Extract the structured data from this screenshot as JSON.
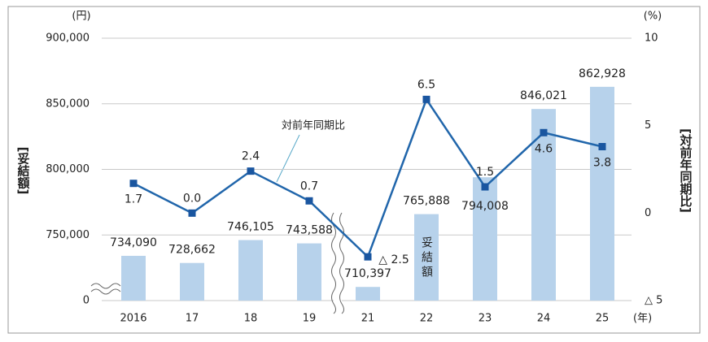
{
  "chart_data": {
    "type": "combo",
    "y_unit": "(円)",
    "y2_unit": "(%)",
    "x_unit": "(年)",
    "y_label": "[妥結額]",
    "y2_label": "[対前年同期比]",
    "categories": [
      "2016",
      "17",
      "18",
      "19",
      "21",
      "22",
      "23",
      "24",
      "25"
    ],
    "series": [
      {
        "name": "妥結額",
        "type": "bar",
        "color": "#b7d2eb",
        "values": [
          734090,
          728662,
          746105,
          743588,
          710397,
          765888,
          794008,
          846021,
          862928
        ],
        "value_labels": [
          "734,090",
          "728,662",
          "746,105",
          "743,588",
          "710,397",
          "765,888",
          "794,008",
          "846,021",
          "862,928"
        ]
      },
      {
        "name": "対前年同期比",
        "type": "line",
        "axis": "y2",
        "color": "#2166ab",
        "values": [
          1.7,
          0.0,
          2.4,
          0.7,
          -2.5,
          6.5,
          1.5,
          4.6,
          3.8
        ],
        "value_labels": [
          "1.7",
          "0.0",
          "2.4",
          "0.7",
          "△ 2.5",
          "6.5",
          "1.5",
          "4.6",
          "3.8"
        ]
      }
    ],
    "ylim": [
      0,
      900000
    ],
    "y_break": [
      0,
      700000
    ],
    "yticks": [
      0,
      {
        "value": 750000,
        "label": "750,000"
      },
      {
        "value": 800000,
        "label": "800,000"
      },
      {
        "value": 850000,
        "label": "850,000"
      },
      {
        "value": 900000,
        "label": "900,000"
      }
    ],
    "y2lim": [
      -5,
      10
    ],
    "y2ticks": [
      {
        "value": -5,
        "label": "△ 5"
      },
      0,
      5,
      10
    ],
    "grid": true
  }
}
